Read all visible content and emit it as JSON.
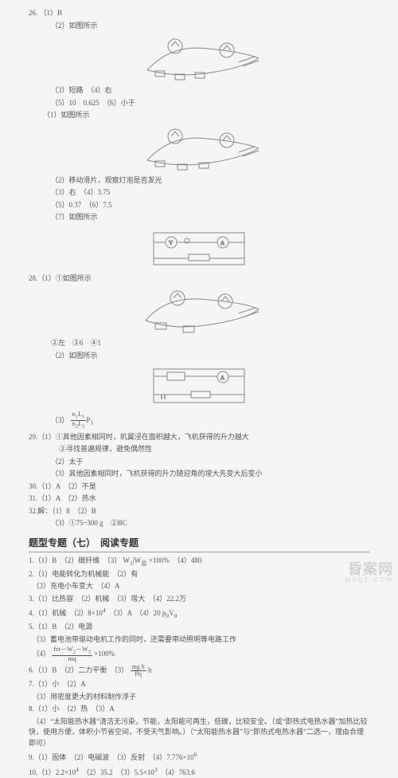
{
  "q26": {
    "p1": "26. （1）B",
    "p2": "（2）如图所示",
    "p3": "（3）短路　（4）右",
    "p4": "（5）10　0.625　（6）小于",
    "series2": {
      "p1": "（1）如图所示",
      "p2": "（2）移动滑片，观察灯泡是否发光",
      "p3": "（3）右　（4）3.75",
      "p4": "（5）0.37　（6）7.5",
      "p5": "（7）如图所示"
    }
  },
  "q28": {
    "p1": "28.（1）①如图所示",
    "p2": "②左　③6　④1",
    "p3": "（2）如图所示"
  },
  "q29": {
    "frac_label": "（3）",
    "p1": "29.（1）①其他因素相同时，机翼浸在面积越大，飞机获得的升力越大",
    "p2": "②寻找普遍规律，避免偶然性",
    "p3": "（2）太于",
    "p4": "（3）其他因素相同时，飞机获得的升力随迎角的增大先变大后变小"
  },
  "q30": "30.（1）A　（2）不是",
  "q31": "31.（1）A　（2）热水",
  "q32_a": "32.解：（1）8　（2）B",
  "q32_b": "（3）①75~300 g　②BC",
  "section_title": "题型专题（七）　阅读专题",
  "list": [
    "1.（1）B　（2）碳纤维　（3） <frac>W<sub>1</sub>|W<sub>总</sub></frac> ×100%　（4）480",
    "2.（1）电能转化为机械能　（2）有",
    "　（3）充电小车变大　（4）A",
    "3.（1）比热容　（2）机械　（3）增大　（4）22.2万",
    "4.（1）机械　（2）8×10<sup>4</sup>　（3）A　（4）20 p<sub>0</sub>V<sub>0</sub>",
    "5.（1）B　（2）电源",
    "　（3）蓄电池带驱动电机工作的同时，还需要带动照明等电路工作",
    "　（4） <frac>fvt－W<sub>2</sub>－W<sub>3</sub>|mq</frac> ×100%",
    "6.（1）B　（2）二力平衡　（3） <frac>mg h|Pη</frac> h",
    "7.（1）小　（2）A",
    "　（3）用密度更大的材料制作浮子",
    "8.（1）小　（2）热　（3）A",
    "　（4）“太阳能热水器”清洁无污染，节能，太阳能可再生，低碳，比较安全。（或“即热式电热水器”加热比较快，使用方便，体积小节省空间，不受天气影响。）（“太阳能热水器”与“即热式电热水器”二选一，理由合理即可）",
    "9.（1）固体　（2）电磁波　（3）反射　（4）7.776×10<sup>6</sup>",
    "10.（1）2.2×10<sup>4</sup>　（2）35.2　（3）5.5×10<sup>3</sup>　（4）763.6"
  ],
  "watermark": "昏案网",
  "wm_url": "MXQE.COM",
  "fig": {
    "stroke": "#888888",
    "width1": 170,
    "height1": 60,
    "width2": 170,
    "height2": 60,
    "width3": 130,
    "height3": 55,
    "width4": 170,
    "height4": 60,
    "width5": 130,
    "height5": 55
  }
}
